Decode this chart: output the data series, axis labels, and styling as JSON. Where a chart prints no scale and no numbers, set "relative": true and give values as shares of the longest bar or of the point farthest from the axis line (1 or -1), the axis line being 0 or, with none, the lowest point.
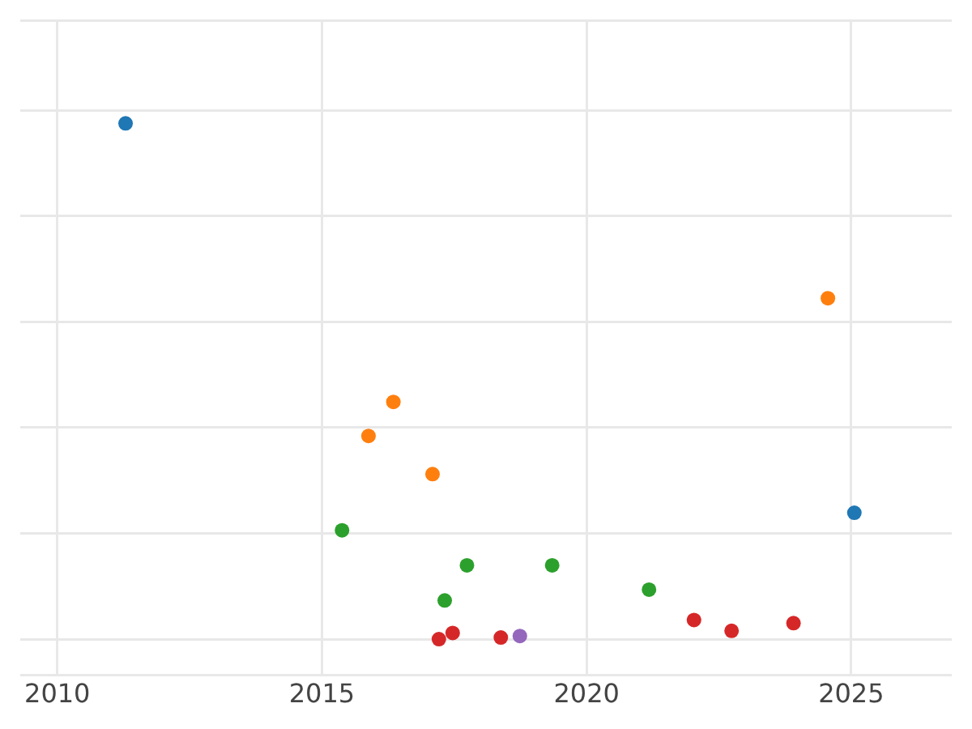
{
  "chart_data": {
    "type": "scatter",
    "relative": true,
    "xlim": [
      2009.3,
      2026.9
    ],
    "xticks": [
      2010,
      2015,
      2020,
      2025
    ],
    "grid": true,
    "marker": "circle",
    "tick_labels": "x",
    "series": [
      {
        "color": "#1f77b4",
        "x": [
          2011.29,
          2025.06
        ],
        "values": [
          1.0,
          0.245
        ]
      },
      {
        "color": "#ff7f0e",
        "x": [
          2024.56,
          2016.35,
          2015.88,
          2017.09
        ],
        "values": [
          0.661,
          0.46,
          0.394,
          0.32
        ]
      },
      {
        "color": "#2ca02c",
        "x": [
          2015.38,
          2017.74,
          2019.35,
          2017.32,
          2021.18
        ],
        "values": [
          0.211,
          0.143,
          0.143,
          0.075,
          0.096
        ]
      },
      {
        "color": "#d62728",
        "x": [
          2017.21,
          2017.47,
          2018.38,
          2022.03,
          2022.74,
          2023.91
        ],
        "values": [
          0,
          0.012,
          0.003,
          0.037,
          0.016,
          0.031
        ]
      },
      {
        "color": "#9467bd",
        "x": [
          2018.74
        ],
        "values": [
          0.006
        ]
      }
    ]
  }
}
